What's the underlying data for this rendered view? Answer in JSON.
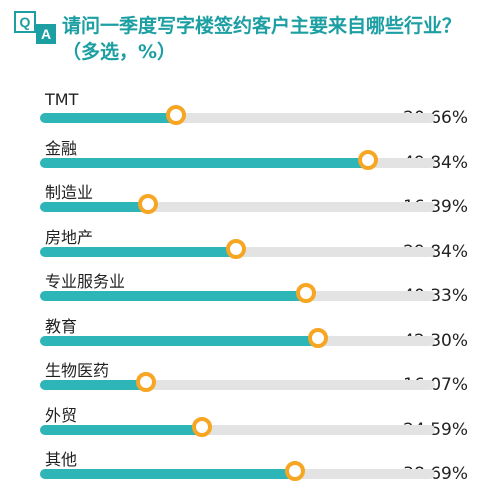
{
  "header": {
    "qa_left": "Q",
    "qa_right": "A",
    "title": "请问一季度写字楼签约客户主要来自哪些行业？（多选，%）"
  },
  "chart_data": {
    "type": "bar",
    "title": "请问一季度写字楼签约客户主要来自哪些行业？（多选，%）",
    "categories": [
      "TMT",
      "金融",
      "制造业",
      "房地产",
      "专业服务业",
      "教育",
      "生物医药",
      "外贸",
      "其他"
    ],
    "values": [
      20.66,
      49.84,
      16.39,
      29.84,
      40.33,
      42.3,
      16.07,
      24.59,
      38.69
    ],
    "value_labels": [
      "20.66%",
      "49.84%",
      "16.39%",
      "29.84%",
      "40.33%",
      "42.30%",
      "16.07%",
      "24.59%",
      "38.69%"
    ],
    "unit": "%",
    "xlim": [
      0,
      60
    ],
    "colors": {
      "fill": "#2db5b8",
      "track": "#e3e3e3",
      "marker": "#f6a623",
      "title": "#1c9fa3"
    }
  }
}
